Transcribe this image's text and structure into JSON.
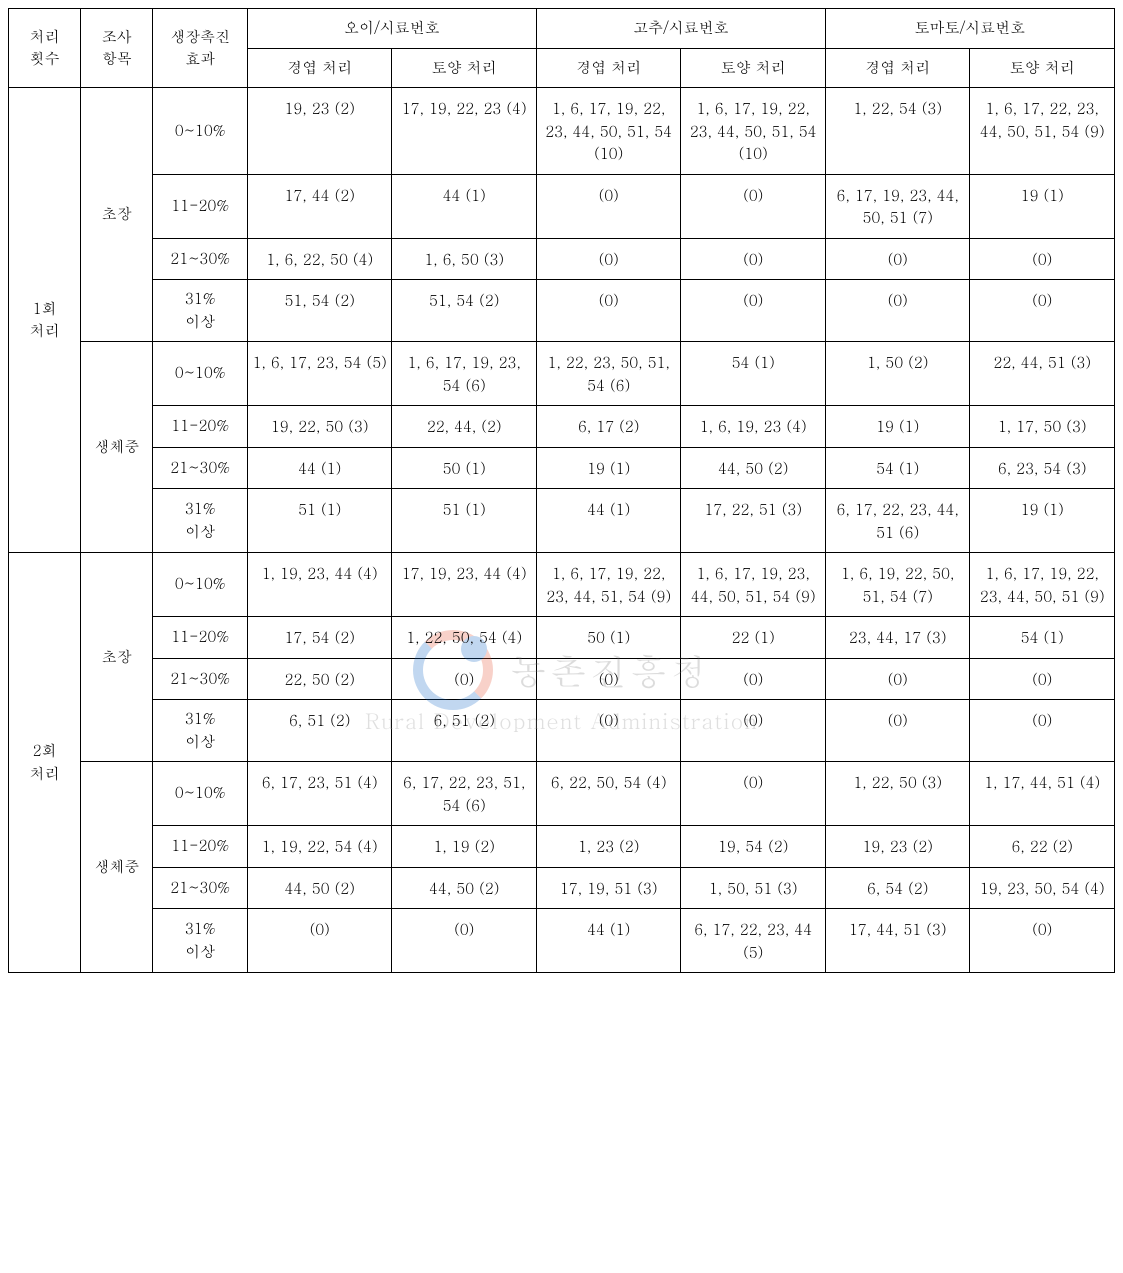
{
  "type": "table",
  "colors": {
    "border": "#000000",
    "text": "#000000",
    "bg": "#ffffff",
    "wm_blue": "#0b63c4",
    "wm_red": "#e54b2d",
    "wm_text": "#888888"
  },
  "fonts": {
    "size_pt": 15,
    "line_height": 1.5
  },
  "watermark": {
    "korean": "농촌진흥청",
    "english": "Rural Development Administration"
  },
  "header": {
    "col0": "처리\n횟수",
    "col1": "조사\n항목",
    "col2": "생장촉진\n효과",
    "groups": [
      "오이/시료번호",
      "고추/시료번호",
      "토마토/시료번호"
    ],
    "sub": [
      "경엽 처리",
      "토양 처리"
    ]
  },
  "row_groups": [
    {
      "treat": "1회\n처리",
      "items": [
        {
          "item": "초장",
          "rows": [
            {
              "eff": "0~10%",
              "d": [
                "19, 23 (2)",
                "17, 19, 22, 23 (4)",
                "1, 6, 17, 19, 22, 23, 44, 50, 51, 54 (10)",
                "1, 6, 17, 19, 22, 23, 44, 50, 51, 54 (10)",
                "1, 22, 54 (3)",
                "1, 6, 17, 22, 23, 44, 50, 51, 54 (9)"
              ]
            },
            {
              "eff": "11-20%",
              "d": [
                "17, 44 (2)",
                "44 (1)",
                "(0)",
                "(0)",
                "6, 17, 19, 23, 44, 50, 51 (7)",
                "19 (1)"
              ]
            },
            {
              "eff": "21~30%",
              "d": [
                "1, 6, 22, 50 (4)",
                "1, 6, 50 (3)",
                "(0)",
                "(0)",
                "(0)",
                "(0)"
              ]
            },
            {
              "eff": "31%\n이상",
              "d": [
                "51, 54 (2)",
                "51, 54 (2)",
                "(0)",
                "(0)",
                "(0)",
                "(0)"
              ]
            }
          ]
        },
        {
          "item": "생체중",
          "rows": [
            {
              "eff": "0~10%",
              "d": [
                "1, 6, 17, 23, 54 (5)",
                "1, 6, 17, 19, 23, 54 (6)",
                "1, 22, 23, 50, 51, 54 (6)",
                "54 (1)",
                "1, 50 (2)",
                "22, 44, 51 (3)"
              ]
            },
            {
              "eff": "11-20%",
              "d": [
                "19, 22, 50 (3)",
                "22, 44, (2)",
                "6, 17 (2)",
                "1, 6, 19, 23 (4)",
                "19 (1)",
                "1, 17, 50 (3)"
              ]
            },
            {
              "eff": "21~30%",
              "d": [
                "44 (1)",
                "50 (1)",
                "19 (1)",
                "44, 50 (2)",
                "54 (1)",
                "6, 23, 54 (3)"
              ]
            },
            {
              "eff": "31%\n이상",
              "d": [
                "51 (1)",
                "51 (1)",
                "44 (1)",
                "17, 22, 51 (3)",
                "6, 17, 22, 23, 44, 51 (6)",
                "19 (1)"
              ]
            }
          ]
        }
      ]
    },
    {
      "treat": "2회\n처리",
      "items": [
        {
          "item": "초장",
          "rows": [
            {
              "eff": "0~10%",
              "d": [
                "1, 19, 23, 44 (4)",
                "17, 19, 23, 44 (4)",
                "1, 6, 17, 19, 22, 23, 44, 51, 54 (9)",
                "1, 6, 17, 19, 23, 44, 50, 51, 54 (9)",
                "1, 6, 19, 22, 50, 51, 54 (7)",
                "1, 6, 17, 19, 22, 23, 44, 50, 51 (9)"
              ]
            },
            {
              "eff": "11-20%",
              "d": [
                "17, 54 (2)",
                "1, 22, 50, 54 (4)",
                "50 (1)",
                "22 (1)",
                "23, 44, 17 (3)",
                "54 (1)"
              ]
            },
            {
              "eff": "21~30%",
              "d": [
                "22, 50 (2)",
                "(0)",
                "(0)",
                "(0)",
                "(0)",
                "(0)"
              ]
            },
            {
              "eff": "31%\n이상",
              "d": [
                "6, 51 (2)",
                "6, 51 (2)",
                "(0)",
                "(0)",
                "(0)",
                "(0)"
              ]
            }
          ]
        },
        {
          "item": "생체중",
          "rows": [
            {
              "eff": "0~10%",
              "d": [
                "6, 17, 23, 51 (4)",
                "6, 17, 22, 23, 51, 54 (6)",
                "6, 22, 50, 54 (4)",
                "(0)",
                "1, 22, 50 (3)",
                "1, 17, 44, 51 (4)"
              ]
            },
            {
              "eff": "11-20%",
              "d": [
                "1, 19, 22, 54 (4)",
                "1, 19 (2)",
                "1, 23 (2)",
                "19, 54 (2)",
                "19, 23 (2)",
                "6, 22 (2)"
              ]
            },
            {
              "eff": "21~30%",
              "d": [
                "44, 50 (2)",
                "44, 50 (2)",
                "17, 19, 51 (3)",
                "1, 50, 51 (3)",
                "6, 54 (2)",
                "19, 23, 50, 54 (4)"
              ]
            },
            {
              "eff": "31%\n이상",
              "d": [
                "(0)",
                "(0)",
                "44 (1)",
                "6, 17, 22, 23, 44 (5)",
                "17, 44, 51 (3)",
                "(0)"
              ]
            }
          ]
        }
      ]
    }
  ]
}
